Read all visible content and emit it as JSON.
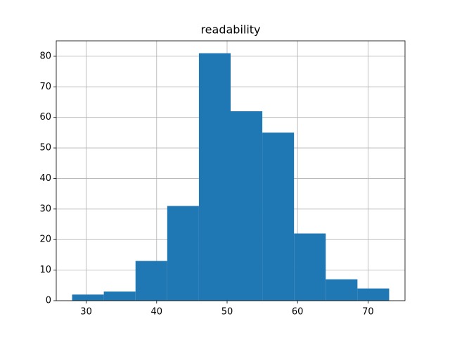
{
  "chart_data": {
    "type": "histogram",
    "title": "readability",
    "bins": [
      28,
      32.5,
      37,
      41.5,
      46,
      50.5,
      55,
      59.5,
      64,
      68.5,
      73
    ],
    "values": [
      2,
      3,
      13,
      31,
      81,
      62,
      55,
      22,
      7,
      4
    ],
    "color": "#1f77b4",
    "xlim": [
      25.75,
      75.25
    ],
    "xticks": [
      30,
      40,
      50,
      60,
      70
    ],
    "ylim": [
      0,
      85.05
    ],
    "yticks": [
      0,
      10,
      20,
      30,
      40,
      50,
      60,
      70,
      80
    ],
    "grid": true
  }
}
